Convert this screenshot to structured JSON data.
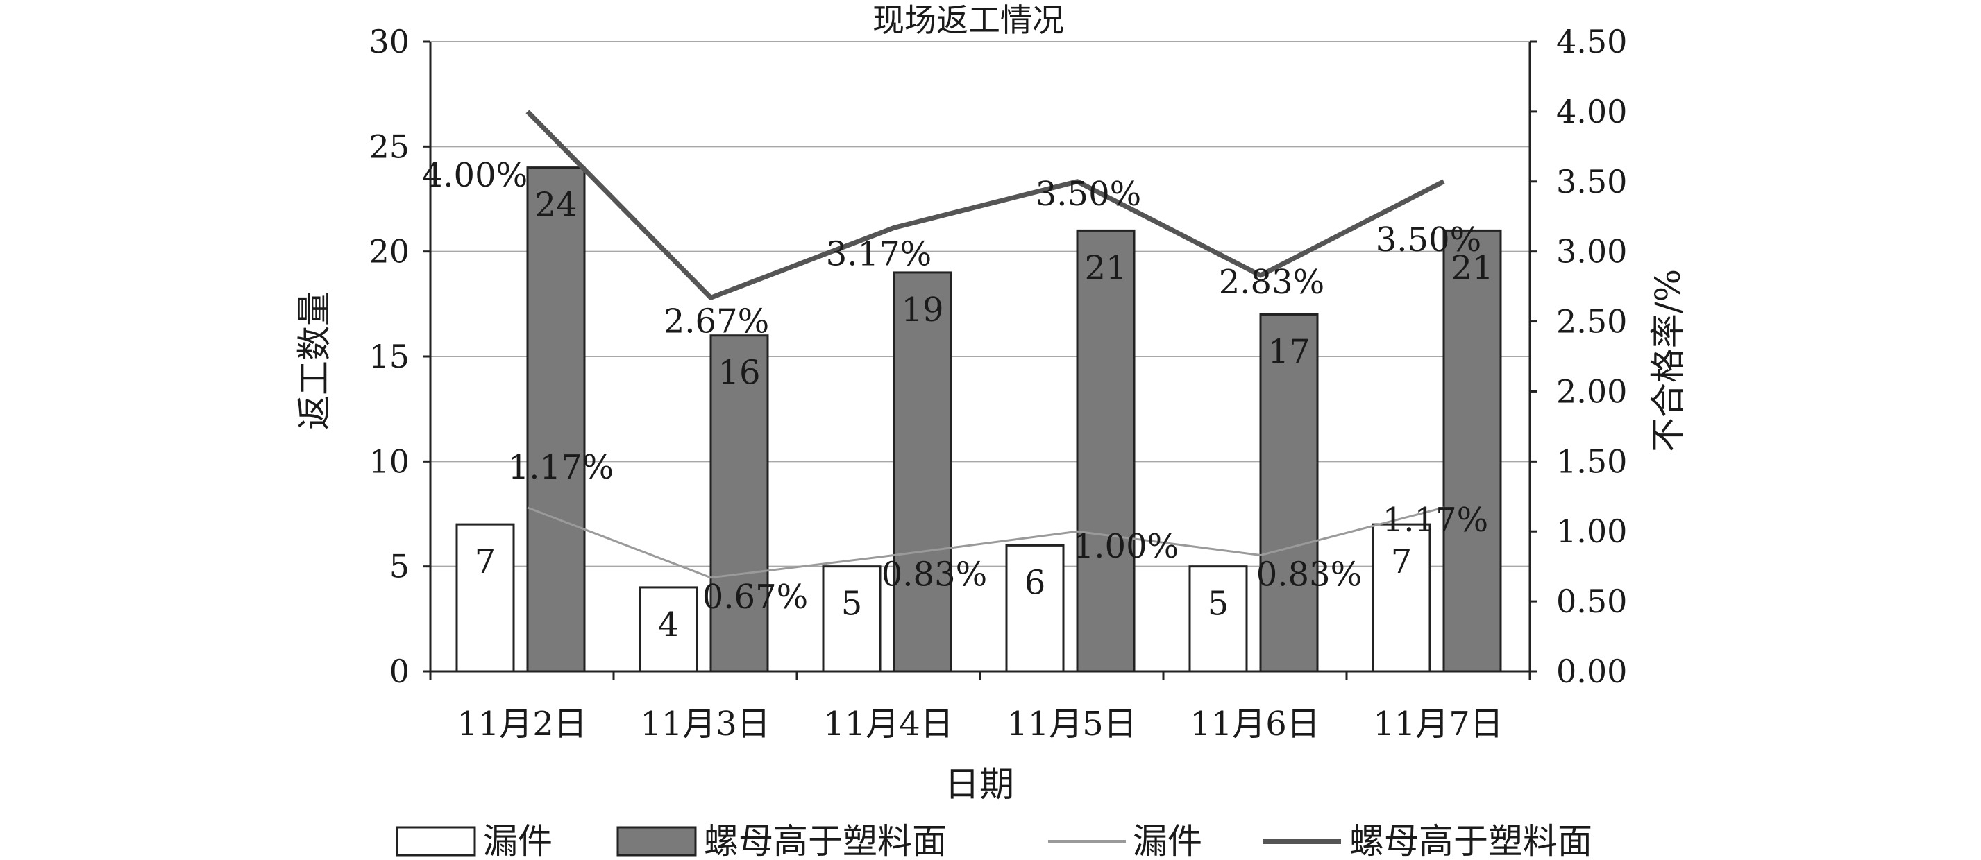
{
  "chart_data": {
    "type": "bar",
    "title": "现场返工情况",
    "categories": [
      "11月2日",
      "11月3日",
      "11月4日",
      "11月5日",
      "11月6日",
      "11月7日"
    ],
    "xlabel": "日期",
    "ylabel": "返工数量",
    "y2label": "不合格率/%",
    "ylim": [
      0,
      30
    ],
    "y2lim": [
      0,
      4.5
    ],
    "yticks": [
      "0",
      "5",
      "10",
      "15",
      "20",
      "25",
      "30"
    ],
    "y2ticks": [
      "0.00",
      "0.50",
      "1.00",
      "1.50",
      "2.00",
      "2.50",
      "3.00",
      "3.50",
      "4.00",
      "4.50"
    ],
    "grid": true,
    "legend_position": "bottom",
    "bar_series": [
      {
        "name": "漏件",
        "values": [
          7,
          4,
          5,
          6,
          5,
          7
        ],
        "color": "#ffffff"
      },
      {
        "name": "螺母高于塑料面",
        "values": [
          24,
          16,
          19,
          21,
          17,
          21
        ],
        "color": "#7a7a7a"
      }
    ],
    "line_series": [
      {
        "name": "漏件",
        "axis": "right",
        "values": [
          1.17,
          0.67,
          0.83,
          1.0,
          0.83,
          1.17
        ],
        "labels": [
          "1.17%",
          "0.67%",
          "0.83%",
          "1.00%",
          "0.83%",
          "1.17%"
        ],
        "color": "#9a9a9a"
      },
      {
        "name": "螺母高于塑料面",
        "axis": "right",
        "values": [
          4.0,
          2.67,
          3.17,
          3.5,
          2.83,
          3.5
        ],
        "labels": [
          "4.00%",
          "2.67%",
          "3.17%",
          "3.50%",
          "2.83%",
          "3.50%"
        ],
        "color": "#555555"
      }
    ]
  }
}
